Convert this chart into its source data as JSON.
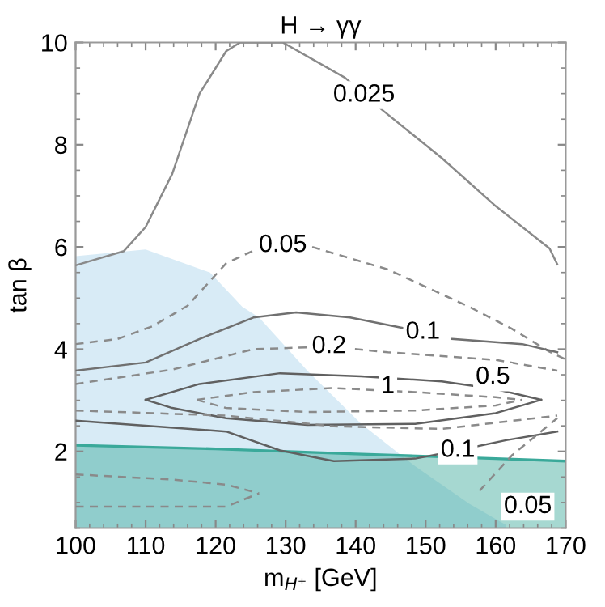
{
  "chart_data": {
    "type": "line",
    "title": "H → γγ",
    "xlabel": "m$_{H⁺}$ [GeV]",
    "ylabel": "tan β",
    "xlim": [
      100,
      170
    ],
    "ylim": [
      0.5,
      10
    ],
    "xticks": [
      100,
      110,
      120,
      130,
      140,
      150,
      160,
      170
    ],
    "yticks": [
      2,
      4,
      6,
      8,
      10
    ],
    "grid": false,
    "series": [
      {
        "type": "area",
        "color": "#a9d3ea",
        "x": [
          100,
          110,
          119.2,
          123.8,
          126.2,
          133.1,
          140.8,
          148.5,
          156.2,
          161.5
        ],
        "values": [
          5.82,
          5.95,
          5.5,
          4.83,
          4.62,
          3.58,
          2.54,
          1.71,
          0.98,
          0.56
        ]
      },
      {
        "type": "area",
        "color": "#3aa99a",
        "line_style": "solid",
        "x": [
          100,
          120,
          140,
          160,
          170
        ],
        "values": [
          2.12,
          2.05,
          1.95,
          1.86,
          1.81
        ]
      },
      {
        "color": "#8a8a8a",
        "line_style": "solid",
        "x": [
          100,
          106.9,
          110,
          113.8,
          117.7,
          121.5,
          123.5,
          129.6,
          138.5,
          143.8,
          152.3,
          160,
          167.7,
          168.8
        ],
        "values": [
          5.64,
          5.92,
          6.39,
          7.43,
          9.0,
          9.83,
          10,
          10,
          9.31,
          8.68,
          7.74,
          6.8,
          5.97,
          5.66
        ]
      },
      {
        "color": "#8a8a8a",
        "line_style": "dashed",
        "x": [
          100,
          106,
          111,
          116,
          121.5,
          126.2,
          129.6,
          133.8,
          144.6,
          156.2,
          162.3,
          167.7,
          170
        ],
        "values": [
          4.1,
          4.2,
          4.45,
          4.85,
          5.68,
          5.98,
          null,
          6.0,
          5.56,
          4.83,
          4.4,
          3.95,
          3.8
        ]
      },
      {
        "color": "#707070",
        "line_style": "solid",
        "x": [
          100,
          110,
          117.7,
          125.4,
          131.5,
          139.2,
          146.9,
          149.6,
          153.8,
          163.8,
          168.8
        ],
        "values": [
          3.58,
          3.74,
          4.2,
          4.62,
          4.72,
          4.62,
          4.41,
          null,
          4.2,
          4.1,
          3.94
        ]
      },
      {
        "color": "#8a8a8a",
        "line_style": "dashed",
        "x": [
          100,
          113.8,
          125.4,
          136.2,
          144.6,
          160,
          168.8
        ],
        "values": [
          3.32,
          3.6,
          4.0,
          4.05,
          3.94,
          3.79,
          3.58
        ]
      },
      {
        "color": "#606060",
        "line_style": "solid",
        "x": [
          110,
          117.7,
          129.2,
          140.8,
          152.3,
          160,
          166.5
        ],
        "values": [
          3.01,
          3.32,
          3.53,
          3.47,
          3.37,
          3.22,
          3.01
        ]
      },
      {
        "color": "#606060",
        "line_style": "solid",
        "x": [
          110,
          113.8,
          121.5,
          133.1,
          148.5,
          160,
          166.5
        ],
        "values": [
          3.01,
          2.85,
          2.65,
          2.52,
          2.54,
          2.75,
          3.01
        ]
      },
      {
        "color": "#8a8a8a",
        "line_style": "dashed",
        "x": [
          117.3,
          125.4,
          136.9,
          148.5,
          160,
          163.8
        ],
        "values": [
          3.01,
          3.16,
          3.24,
          3.16,
          3.06,
          3.01
        ]
      },
      {
        "color": "#8a8a8a",
        "line_style": "dashed",
        "x": [
          117.3,
          121.5,
          133.1,
          148.5,
          160,
          163.8
        ],
        "values": [
          3.01,
          2.85,
          2.77,
          2.8,
          2.9,
          3.01
        ]
      },
      {
        "color": "#8a8a8a",
        "line_style": "dashed",
        "x": [
          100,
          121.5,
          136.9,
          152.3,
          168.8
        ],
        "values": [
          2.8,
          2.7,
          2.49,
          2.44,
          2.7
        ]
      },
      {
        "color": "#606060",
        "line_style": "solid",
        "x": [
          100,
          121.5,
          129.2,
          136.9,
          148.5,
          154.6,
          161.5,
          168.8
        ],
        "values": [
          2.6,
          2.39,
          2.02,
          1.81,
          1.86,
          2.02,
          2.22,
          2.39
        ]
      },
      {
        "color": "#8a8a8a",
        "line_style": "dashed",
        "x": [
          100,
          113.8,
          121.5,
          126.2
        ],
        "values": [
          1.55,
          1.45,
          1.35,
          1.18
        ]
      },
      {
        "color": "#8a8a8a",
        "line_style": "dashed",
        "x": [
          100,
          121.5,
          126.2
        ],
        "values": [
          0.92,
          0.92,
          1.18
        ]
      },
      {
        "color": "#8a8a8a",
        "line_style": "dashed",
        "x": [
          157.7,
          162.3,
          168.8
        ],
        "values": [
          1.23,
          1.92,
          2.65
        ]
      }
    ],
    "annotations": [
      {
        "text": "0.025",
        "x": 141.2,
        "y": 8.97
      },
      {
        "text": "0.05",
        "x": 129.6,
        "y": 6.03
      },
      {
        "text": "0.1",
        "x": 149.6,
        "y": 4.33
      },
      {
        "text": "0.2",
        "x": 136.2,
        "y": 4.05
      },
      {
        "text": "1",
        "x": 144.6,
        "y": 3.27
      },
      {
        "text": "0.5",
        "x": 159.6,
        "y": 3.45
      },
      {
        "text": "0.1",
        "x": 154.6,
        "y": 2.02
      },
      {
        "text": "0.05",
        "x": 164.6,
        "y": 0.92
      }
    ]
  }
}
